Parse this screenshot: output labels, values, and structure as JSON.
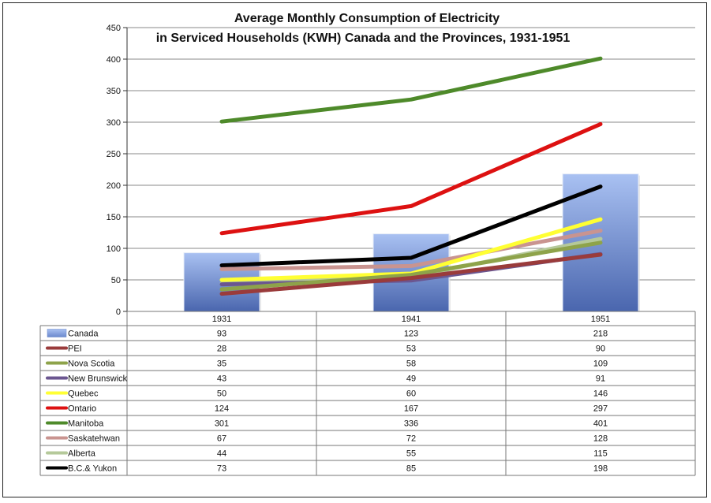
{
  "chart_data": {
    "type": "bar",
    "title_lines": [
      "Average Monthly  Consumption  of Electricity",
      "in Serviced Households  (KWH) Canada  and the Provinces, 1931-1951"
    ],
    "categories": [
      "1931",
      "1941",
      "1951"
    ],
    "ylim": [
      0,
      450
    ],
    "yticks": [
      0,
      50,
      100,
      150,
      200,
      250,
      300,
      350,
      400,
      450
    ],
    "grid": true,
    "series": [
      {
        "name": "Canada",
        "kind": "bar",
        "color": "#8FAAE6",
        "values": [
          93,
          123,
          218
        ]
      },
      {
        "name": "PEI",
        "kind": "line",
        "color": "#9A3B3B",
        "values": [
          28,
          53,
          90
        ]
      },
      {
        "name": "Nova Scotia",
        "kind": "line",
        "color": "#8EA34A",
        "values": [
          35,
          58,
          109
        ]
      },
      {
        "name": "New Brunswick",
        "kind": "line",
        "color": "#6B5690",
        "values": [
          43,
          49,
          91
        ]
      },
      {
        "name": "Quebec",
        "kind": "line",
        "color": "#FFFF33",
        "values": [
          50,
          60,
          146
        ]
      },
      {
        "name": "Ontario",
        "kind": "line",
        "color": "#DD1111",
        "values": [
          124,
          167,
          297
        ]
      },
      {
        "name": "Manitoba",
        "kind": "line",
        "color": "#4E8A2A",
        "values": [
          301,
          336,
          401
        ]
      },
      {
        "name": "Saskatehwan",
        "kind": "line",
        "color": "#C99490",
        "values": [
          67,
          72,
          128
        ]
      },
      {
        "name": "Alberta",
        "kind": "line",
        "color": "#B5C99A",
        "values": [
          44,
          55,
          115
        ]
      },
      {
        "name": "B.C.& Yukon",
        "kind": "line",
        "color": "#000000",
        "values": [
          73,
          85,
          198
        ]
      }
    ]
  }
}
